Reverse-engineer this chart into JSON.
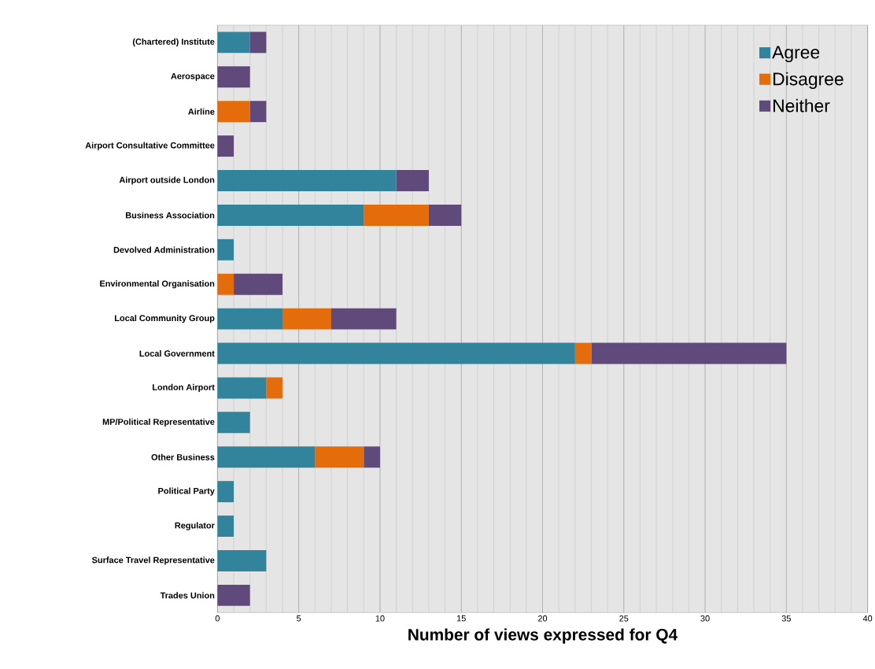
{
  "chart_data": {
    "type": "bar",
    "orientation": "horizontal",
    "stacked": true,
    "xlabel": "Number of views expressed for Q4",
    "categories": [
      "(Chartered) Institute",
      "Aerospace",
      "Airline",
      "Airport Consultative Committee",
      "Airport outside London",
      "Business Association",
      "Devolved Administration",
      "Environmental Organisation",
      "Local Community Group",
      "Local Government",
      "London Airport",
      "MP/Political Representative",
      "Other Business",
      "Political Party",
      "Regulator",
      "Surface Travel Representative",
      "Trades Union"
    ],
    "series": [
      {
        "name": "Agree",
        "color": "#31849b",
        "values": [
          2,
          0,
          0,
          0,
          11,
          9,
          1,
          0,
          4,
          22,
          3,
          2,
          6,
          1,
          1,
          3,
          0
        ]
      },
      {
        "name": "Disagree",
        "color": "#e46c0a",
        "values": [
          0,
          0,
          2,
          0,
          0,
          4,
          0,
          1,
          3,
          1,
          1,
          0,
          3,
          0,
          0,
          0,
          0
        ]
      },
      {
        "name": "Neither",
        "color": "#604a7b",
        "values": [
          1,
          2,
          1,
          1,
          2,
          2,
          0,
          3,
          4,
          12,
          0,
          0,
          1,
          0,
          0,
          0,
          2
        ]
      }
    ],
    "xlim": [
      0,
      40
    ],
    "xticks": [
      0,
      5,
      10,
      15,
      20,
      25,
      30,
      35,
      40
    ],
    "grid": "x",
    "legend": "top right"
  }
}
